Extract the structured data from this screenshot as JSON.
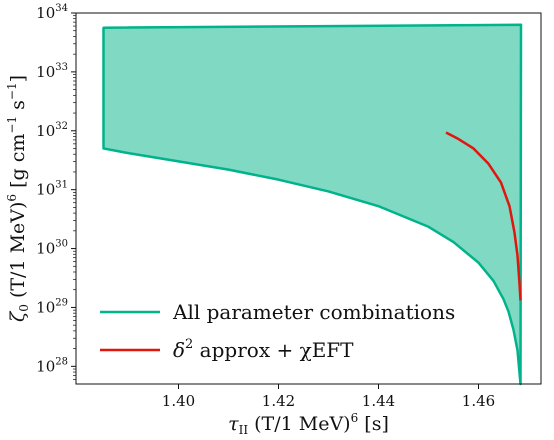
{
  "chart_data": {
    "type": "area",
    "xlabel": "τ_II (T/1 MeV)^6 [s]",
    "xlabel_parts": {
      "sym": "τ",
      "sub": "II",
      "mid": " (T/1 MeV)",
      "pow": "6",
      "tail": " [s]"
    },
    "ylabel": "ζ_0 (T/1 MeV)^6 [g cm^-1 s^-1]",
    "ylabel_parts": {
      "sym": "ζ",
      "sub": "0",
      "mid": " (T/1 MeV)",
      "pow": "6",
      "tail1": " [g cm",
      "pow2": "−1",
      "tail2": " s",
      "pow3": "−1",
      "tail3": "]"
    },
    "xlim": [
      1.3795,
      1.4725
    ],
    "ylim_log10": [
      27.7,
      34
    ],
    "y_scale": "log",
    "grid": false,
    "x_ticks": [
      {
        "value": 1.4,
        "label": "1.40"
      },
      {
        "value": 1.42,
        "label": "1.42"
      },
      {
        "value": 1.44,
        "label": "1.44"
      },
      {
        "value": 1.46,
        "label": "1.46"
      }
    ],
    "y_ticks": [
      {
        "exp": 28,
        "base": "10",
        "power": "28"
      },
      {
        "exp": 29,
        "base": "10",
        "power": "29"
      },
      {
        "exp": 30,
        "base": "10",
        "power": "30"
      },
      {
        "exp": 31,
        "base": "10",
        "power": "31"
      },
      {
        "exp": 32,
        "base": "10",
        "power": "32"
      },
      {
        "exp": 33,
        "base": "10",
        "power": "33"
      },
      {
        "exp": 34,
        "base": "10",
        "power": "34"
      }
    ],
    "series": [
      {
        "name": "All parameter combinations",
        "color": "#00b38a",
        "fill": "#80d9c2",
        "upper_edge_log10": [
          [
            1.385,
            33.75
          ],
          [
            1.4685,
            33.8
          ]
        ],
        "lower_edge_log10": [
          [
            1.385,
            31.7
          ],
          [
            1.39,
            31.62
          ],
          [
            1.4,
            31.48
          ],
          [
            1.41,
            31.34
          ],
          [
            1.42,
            31.17
          ],
          [
            1.43,
            30.97
          ],
          [
            1.44,
            30.72
          ],
          [
            1.45,
            30.37
          ],
          [
            1.455,
            30.11
          ],
          [
            1.46,
            29.76
          ],
          [
            1.463,
            29.45
          ],
          [
            1.465,
            29.14
          ],
          [
            1.466,
            28.93
          ],
          [
            1.467,
            28.62
          ],
          [
            1.4678,
            28.27
          ],
          [
            1.4684,
            27.7
          ]
        ]
      },
      {
        "name": "δ² approx + χEFT",
        "name_parts": {
          "sym": "δ",
          "pow": "2",
          "rest": " approx + χEFT"
        },
        "color": "#e0160f",
        "points_log10": [
          [
            1.4535,
            31.97
          ],
          [
            1.456,
            31.86
          ],
          [
            1.459,
            31.7
          ],
          [
            1.462,
            31.44
          ],
          [
            1.4645,
            31.12
          ],
          [
            1.4662,
            30.72
          ],
          [
            1.4672,
            30.27
          ],
          [
            1.4678,
            29.88
          ],
          [
            1.4682,
            29.4
          ],
          [
            1.4684,
            29.12
          ]
        ]
      }
    ],
    "legend_position": "lower-left"
  }
}
